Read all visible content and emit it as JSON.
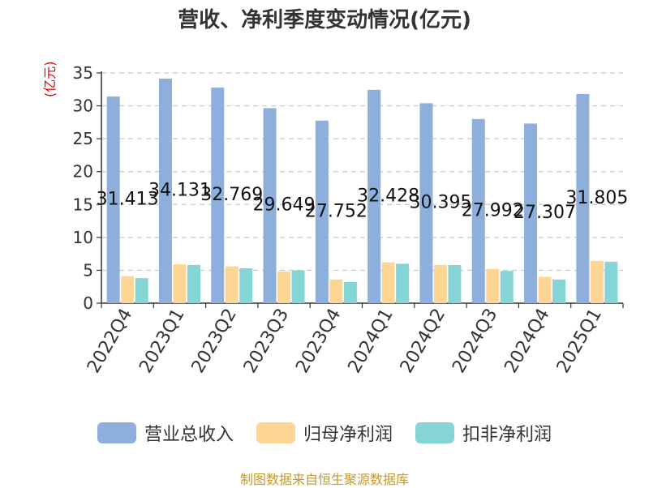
{
  "chart_data": {
    "type": "bar",
    "title": "营收、净利季度变动情况(亿元)",
    "ylabel": "(亿元)",
    "ylim": [
      0,
      35
    ],
    "yticks": [
      0,
      5,
      10,
      15,
      20,
      25,
      30,
      35
    ],
    "grid": true,
    "legend_position": "bottom",
    "categories": [
      "2022Q4",
      "2023Q1",
      "2023Q2",
      "2023Q3",
      "2023Q4",
      "2024Q1",
      "2024Q2",
      "2024Q3",
      "2024Q4",
      "2025Q1"
    ],
    "series": [
      {
        "name": "营业总收入",
        "color": "#8eaedb",
        "values": [
          31.413,
          34.131,
          32.769,
          29.649,
          27.752,
          32.428,
          30.395,
          27.992,
          27.307,
          31.805
        ],
        "show_labels": true
      },
      {
        "name": "归母净利润",
        "color": "#fdd595",
        "values": [
          4.1,
          5.9,
          5.6,
          4.8,
          3.6,
          6.2,
          5.8,
          5.2,
          4.0,
          6.4
        ],
        "show_labels": false
      },
      {
        "name": "扣非净利润",
        "color": "#85d4d6",
        "values": [
          3.8,
          5.8,
          5.3,
          5.0,
          3.2,
          6.0,
          5.8,
          4.9,
          3.6,
          6.3
        ],
        "show_labels": false
      }
    ]
  },
  "source_text": "制图数据来自恒生聚源数据库"
}
